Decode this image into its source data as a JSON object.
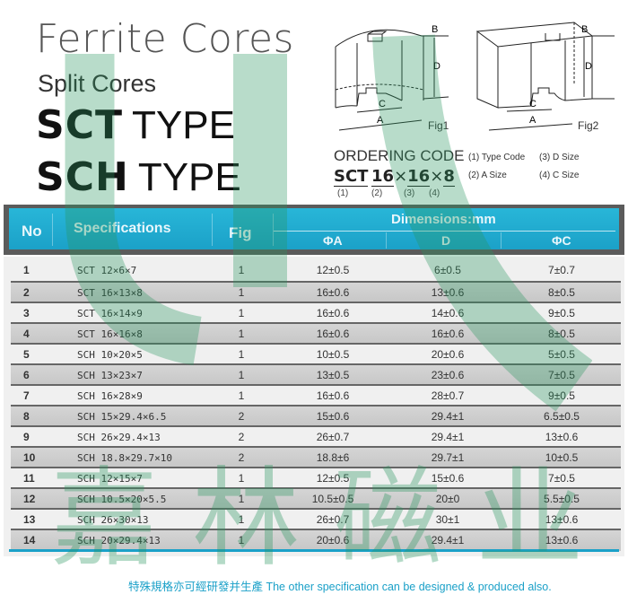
{
  "title": {
    "line1": "Ferrite Cores",
    "line2": "Split Cores",
    "type1_bold": "SCT",
    "type1_word": "TYPE",
    "type2_bold": "SCH",
    "type2_word": "TYPE"
  },
  "figures": {
    "fig1": "Fig1",
    "fig2": "Fig2",
    "labels": {
      "a": "A",
      "b": "B",
      "c": "C",
      "d": "D"
    }
  },
  "ordering": {
    "title": "ORDERING CODE",
    "parts": [
      "SCT",
      "16",
      "×",
      "16",
      "×",
      "8"
    ],
    "indices": [
      "(1)",
      "(2)",
      "(3)",
      "(4)"
    ],
    "legend": [
      "(1) Type Code",
      "(2) A Size",
      "(3) D Size",
      "(4) C Size"
    ]
  },
  "table": {
    "headers": {
      "no": "No",
      "spec": "Specifications",
      "fig": "Fig",
      "dims": "Dimensions:mm",
      "a": "ΦA",
      "d": "D",
      "c": "ΦC"
    },
    "rows": [
      {
        "no": "1",
        "spec": "SCT 12×6×7",
        "fig": "1",
        "a": "12±0.5",
        "d": "6±0.5",
        "c": "7±0.7"
      },
      {
        "no": "2",
        "spec": "SCT 16×13×8",
        "fig": "1",
        "a": "16±0.6",
        "d": "13±0.6",
        "c": "8±0.5"
      },
      {
        "no": "3",
        "spec": "SCT 16×14×9",
        "fig": "1",
        "a": "16±0.6",
        "d": "14±0.6",
        "c": "9±0.5"
      },
      {
        "no": "4",
        "spec": "SCT 16×16×8",
        "fig": "1",
        "a": "16±0.6",
        "d": "16±0.6",
        "c": "8±0.5"
      },
      {
        "no": "5",
        "spec": "SCH 10×20×5",
        "fig": "1",
        "a": "10±0.5",
        "d": "20±0.6",
        "c": "5±0.5"
      },
      {
        "no": "6",
        "spec": "SCH 13×23×7",
        "fig": "1",
        "a": "13±0.5",
        "d": "23±0.6",
        "c": "7±0.5"
      },
      {
        "no": "7",
        "spec": "SCH 16×28×9",
        "fig": "1",
        "a": "16±0.6",
        "d": "28±0.7",
        "c": "9±0.5"
      },
      {
        "no": "8",
        "spec": "SCH 15×29.4×6.5",
        "fig": "2",
        "a": "15±0.6",
        "d": "29.4±1",
        "c": "6.5±0.5"
      },
      {
        "no": "9",
        "spec": "SCH 26×29.4×13",
        "fig": "2",
        "a": "26±0.7",
        "d": "29.4±1",
        "c": "13±0.6"
      },
      {
        "no": "10",
        "spec": "SCH 18.8×29.7×10",
        "fig": "2",
        "a": "18.8±6",
        "d": "29.7±1",
        "c": "10±0.5"
      },
      {
        "no": "11",
        "spec": "SCH 12×15×7",
        "fig": "1",
        "a": "12±0.5",
        "d": "15±0.6",
        "c": "7±0.5"
      },
      {
        "no": "12",
        "spec": "SCH 10.5×20×5.5",
        "fig": "1",
        "a": "10.5±0.5",
        "d": "20±0",
        "c": "5.5±0.5"
      },
      {
        "no": "13",
        "spec": "SCH 26×30×13",
        "fig": "1",
        "a": "26±0.7",
        "d": "30±1",
        "c": "13±0.6"
      },
      {
        "no": "14",
        "spec": "SCH 20×29.4×13",
        "fig": "1",
        "a": "20±0.6",
        "d": "29.4±1",
        "c": "13±0.6"
      }
    ]
  },
  "footer": "特殊規格亦可經研發并生產  The other specification can be designed & produced also.",
  "watermark": "嘉林磁业",
  "colors": {
    "header": "#1ba1c8",
    "watermark": "#2e9660",
    "footer": "#1aa0c8"
  }
}
